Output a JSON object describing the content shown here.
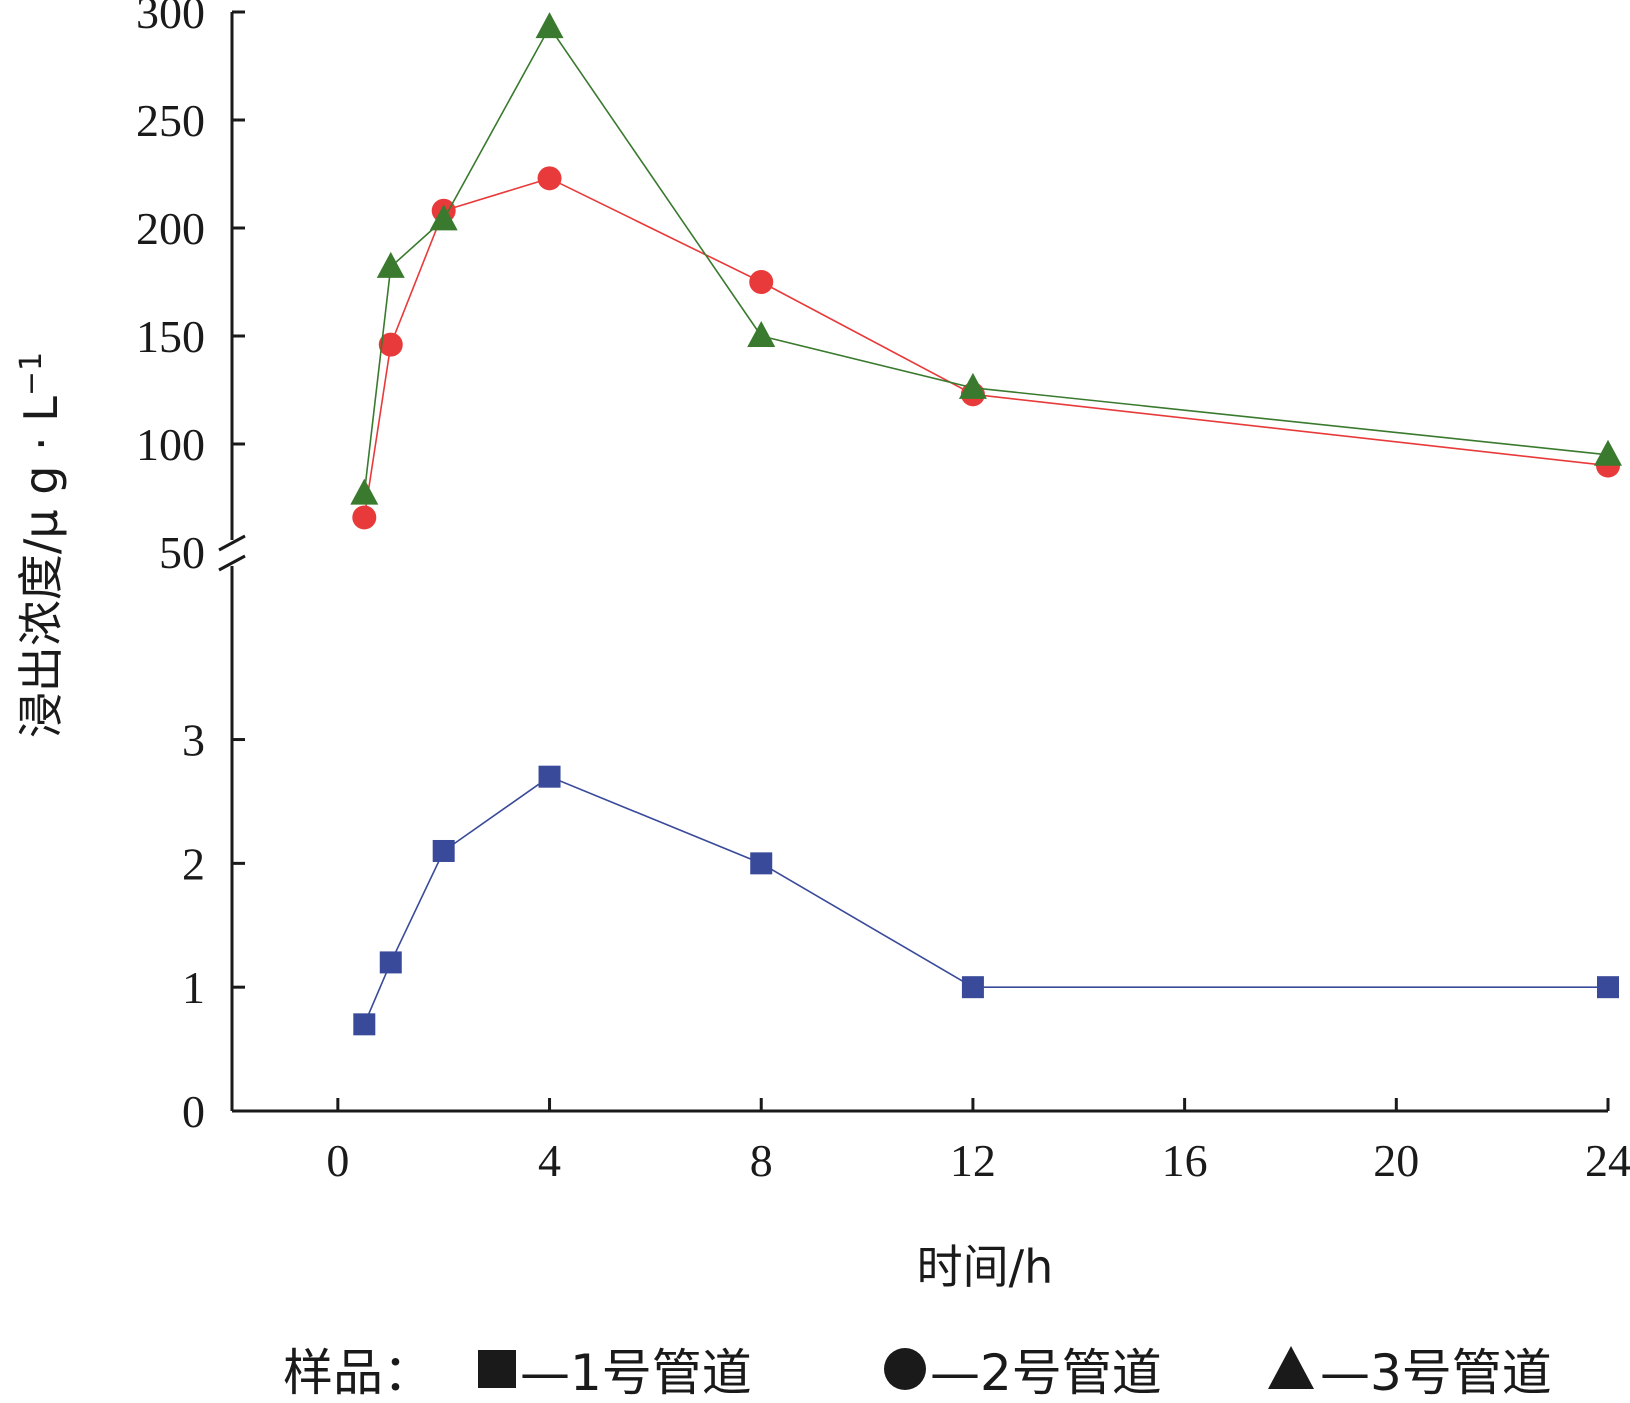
{
  "chart_data": {
    "type": "line",
    "xlabel": "时间/h",
    "ylabel": "浸出浓度/μ g · L",
    "ylabel_sup": "−1",
    "x_ticks": [
      "0",
      "4",
      "8",
      "12",
      "16",
      "20",
      "24"
    ],
    "xlim": [
      -2,
      24
    ],
    "y_axis_break": true,
    "ylim_lower": [
      0,
      4.45
    ],
    "ylim_upper": [
      50,
      300
    ],
    "y_ticks_lower": [
      "0",
      "1",
      "2",
      "3"
    ],
    "y_ticks_upper": [
      "50",
      "100",
      "150",
      "200",
      "250",
      "300"
    ],
    "grid": false,
    "legend_position": "bottom",
    "legend_prefix": "样品：",
    "series": [
      {
        "name": "1号管道",
        "legend_label": "—1号管道",
        "marker": "square",
        "color": "#3a4a9a",
        "panel": "lower",
        "x": [
          0.5,
          1,
          2,
          4,
          8,
          12,
          24
        ],
        "y": [
          0.7,
          1.2,
          2.1,
          2.7,
          2.0,
          1.0,
          1.0
        ]
      },
      {
        "name": "2号管道",
        "legend_label": "—2号管道",
        "marker": "circle",
        "color": "#e83a3a",
        "panel": "upper",
        "x": [
          0.5,
          1,
          2,
          4,
          8,
          12,
          24
        ],
        "y": [
          66,
          146,
          208,
          223,
          175,
          123,
          90
        ]
      },
      {
        "name": "3号管道",
        "legend_label": "—3号管道",
        "marker": "triangle",
        "color": "#3a7a2e",
        "panel": "upper",
        "x": [
          0.5,
          1,
          2,
          4,
          8,
          12,
          24
        ],
        "y": [
          77,
          182,
          204,
          293,
          150,
          126,
          95
        ]
      }
    ]
  }
}
